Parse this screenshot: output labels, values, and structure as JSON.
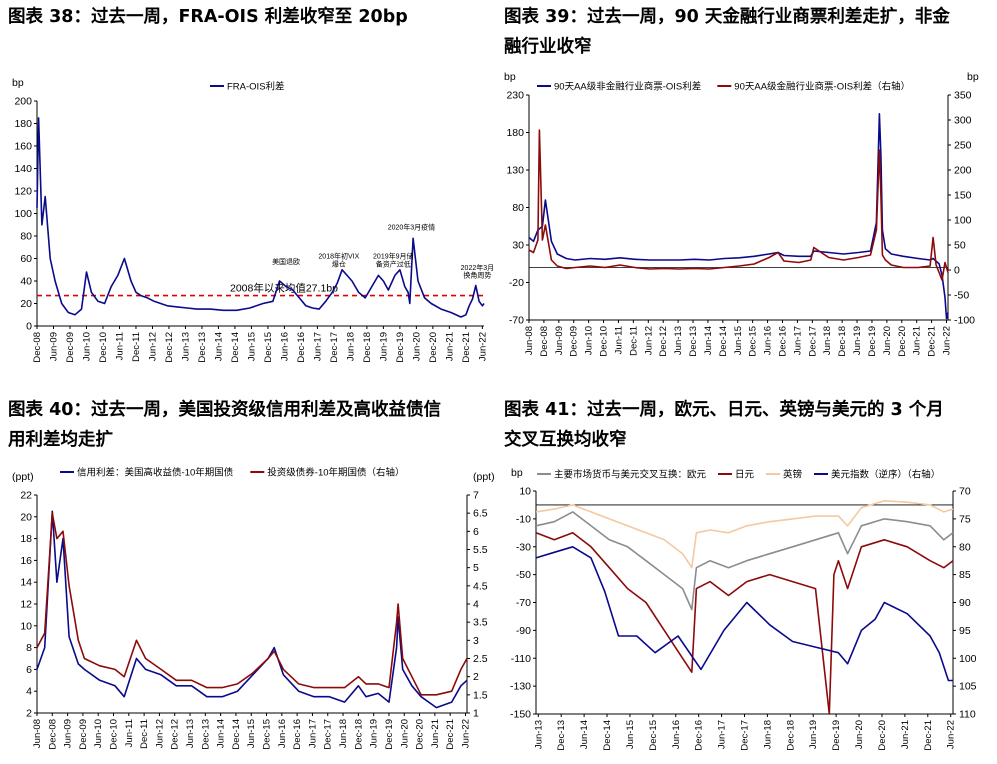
{
  "titles": {
    "c38": "图表 38：过去一周，FRA-OIS 利差收窄至 20bp",
    "c39_line1": "图表 39：过去一周，90 天金融行业商票利差走扩，非金",
    "c39_line2": "融行业收窄",
    "c40_line1": "图表 40：过去一周，美国投资级信用利差及高收益债信",
    "c40_line2": "用利差均走扩",
    "c41_line1": "图表 41：过去一周，欧元、日元、英镑与美元的 3 个月",
    "c41_line2": "交叉互换均收窄"
  },
  "chart_data": [
    {
      "id": "c38",
      "type": "line",
      "title": "图表 38：过去一周，FRA-OIS 利差收窄至 20bp",
      "ylabel": "bp",
      "ylim": [
        0,
        200
      ],
      "yticks": [
        "0",
        "20",
        "40",
        "60",
        "80",
        "100",
        "120",
        "140",
        "160",
        "180",
        "200"
      ],
      "xticks": [
        "Dec-08",
        "Jun-09",
        "Dec-09",
        "Jun-10",
        "Dec-10",
        "Jun-11",
        "Dec-11",
        "Jun-12",
        "Dec-12",
        "Jun-13",
        "Dec-13",
        "Jun-14",
        "Dec-14",
        "Jun-15",
        "Dec-15",
        "Jun-16",
        "Dec-16",
        "Jun-17",
        "Dec-17",
        "Jun-18",
        "Dec-18",
        "Jun-19",
        "Dec-19",
        "Jun-20",
        "Dec-20",
        "Jun-21",
        "Dec-21",
        "Jun-22"
      ],
      "series": [
        {
          "name": "FRA-OIS利差",
          "color": "#0a0a8c",
          "x": [
            2008.95,
            2009.0,
            2009.1,
            2009.2,
            2009.35,
            2009.5,
            2009.7,
            2009.9,
            2010.1,
            2010.3,
            2010.45,
            2010.6,
            2010.8,
            2011.0,
            2011.2,
            2011.4,
            2011.6,
            2011.8,
            2011.95,
            2012.1,
            2012.3,
            2012.5,
            2012.7,
            2012.9,
            2013.2,
            2013.5,
            2013.8,
            2014.2,
            2014.6,
            2015.0,
            2015.4,
            2015.8,
            2016.1,
            2016.3,
            2016.5,
            2016.7,
            2016.9,
            2017.1,
            2017.3,
            2017.5,
            2017.7,
            2017.9,
            2018.05,
            2018.2,
            2018.35,
            2018.5,
            2018.7,
            2018.9,
            2019.1,
            2019.3,
            2019.45,
            2019.6,
            2019.8,
            2019.95,
            2020.1,
            2020.2,
            2020.25,
            2020.35,
            2020.5,
            2020.7,
            2020.9,
            2021.2,
            2021.5,
            2021.8,
            2021.95,
            2022.05,
            2022.15,
            2022.25,
            2022.35,
            2022.45,
            2022.5
          ],
          "y": [
            105,
            185,
            90,
            115,
            60,
            40,
            20,
            12,
            10,
            15,
            48,
            30,
            22,
            20,
            35,
            45,
            60,
            40,
            30,
            27,
            25,
            22,
            20,
            18,
            17,
            16,
            15,
            15,
            14,
            14,
            16,
            20,
            22,
            40,
            35,
            32,
            25,
            18,
            16,
            15,
            22,
            30,
            38,
            50,
            45,
            40,
            30,
            25,
            35,
            45,
            40,
            32,
            45,
            50,
            35,
            30,
            20,
            78,
            40,
            25,
            20,
            15,
            12,
            8,
            10,
            18,
            24,
            36,
            22,
            18,
            20
          ]
        }
      ],
      "reference_line": {
        "label": "2008年以来均值27.1bp",
        "value": 27.1,
        "color": "#e00000"
      },
      "annotations": [
        {
          "text": "美国退欧",
          "x": 2016.5,
          "y": 55
        },
        {
          "text": "2018年初VIX",
          "x": 2018.1,
          "y": 60
        },
        {
          "text": "爆仓",
          "x": 2018.1,
          "y": 53
        },
        {
          "text": "2019年9月储",
          "x": 2019.75,
          "y": 60
        },
        {
          "text": "备资产过低",
          "x": 2019.75,
          "y": 53
        },
        {
          "text": "2020年3月疫情",
          "x": 2020.3,
          "y": 86
        },
        {
          "text": "2022年3月",
          "x": 2022.3,
          "y": 50
        },
        {
          "text": "换角周势",
          "x": 2022.3,
          "y": 43
        }
      ]
    },
    {
      "id": "c39",
      "type": "line",
      "title": "图表 39：过去一周，90 天金融行业商票利差走扩，非金融行业收窄",
      "ylabel": "bp",
      "ylabel_right": "bp",
      "ylim": [
        -70,
        230
      ],
      "ylim_right": [
        -100,
        350
      ],
      "yticks": [
        "-70",
        "-20",
        "30",
        "80",
        "130",
        "180",
        "230"
      ],
      "yticks_right": [
        "-100",
        "-50",
        "0",
        "50",
        "100",
        "150",
        "200",
        "250",
        "300",
        "350"
      ],
      "xticks": [
        "Jun-08",
        "Dec-08",
        "Jun-09",
        "Dec-09",
        "Jun-10",
        "Dec-10",
        "Jun-11",
        "Dec-11",
        "Jun-12",
        "Dec-12",
        "Jun-13",
        "Dec-13",
        "Jun-14",
        "Dec-14",
        "Jun-15",
        "Dec-15",
        "Jun-16",
        "Dec-16",
        "Jun-17",
        "Dec-17",
        "Jun-18",
        "Dec-18",
        "Jun-19",
        "Dec-19",
        "Jun-20",
        "Dec-20",
        "Jun-21",
        "Dec-21",
        "Jun-22"
      ],
      "series": [
        {
          "name": "90天AA级非金融行业商票-OIS利差",
          "color": "#0a0a8c",
          "axis": "left",
          "x": [
            2008.45,
            2008.6,
            2008.75,
            2008.9,
            2009.0,
            2009.2,
            2009.4,
            2009.7,
            2010.0,
            2010.5,
            2011.0,
            2011.5,
            2012.0,
            2012.5,
            2013.0,
            2013.5,
            2014.0,
            2014.5,
            2015.0,
            2015.5,
            2016.0,
            2016.5,
            2016.8,
            2017.0,
            2017.5,
            2017.9,
            2018.0,
            2018.5,
            2019.0,
            2019.5,
            2019.9,
            2020.1,
            2020.2,
            2020.25,
            2020.3,
            2020.4,
            2020.6,
            2021.0,
            2021.5,
            2021.9,
            2022.0,
            2022.2,
            2022.3,
            2022.4,
            2022.45,
            2022.5
          ],
          "y": [
            40,
            35,
            50,
            55,
            90,
            35,
            18,
            12,
            10,
            12,
            11,
            13,
            11,
            10,
            10,
            10,
            11,
            10,
            12,
            13,
            15,
            18,
            20,
            16,
            15,
            15,
            22,
            20,
            18,
            20,
            22,
            60,
            205,
            150,
            50,
            25,
            18,
            15,
            12,
            10,
            12,
            5,
            -10,
            -40,
            -68,
            -60
          ]
        },
        {
          "name": "90天AA级金融行业商票-OIS利差（右轴）",
          "color": "#8c0a0a",
          "axis": "right",
          "x": [
            2008.45,
            2008.6,
            2008.75,
            2008.8,
            2008.9,
            2009.0,
            2009.2,
            2009.4,
            2009.7,
            2010.0,
            2010.5,
            2011.0,
            2011.5,
            2012.0,
            2012.5,
            2013.0,
            2013.5,
            2014.0,
            2014.5,
            2015.0,
            2015.5,
            2016.0,
            2016.5,
            2016.8,
            2017.0,
            2017.5,
            2017.9,
            2018.0,
            2018.5,
            2019.0,
            2019.5,
            2019.9,
            2020.1,
            2020.2,
            2020.25,
            2020.3,
            2020.4,
            2020.6,
            2021.0,
            2021.5,
            2021.9,
            2022.0,
            2022.1,
            2022.2,
            2022.3,
            2022.4,
            2022.5
          ],
          "y": [
            40,
            35,
            60,
            280,
            60,
            90,
            20,
            8,
            3,
            5,
            8,
            5,
            10,
            5,
            2,
            3,
            2,
            3,
            2,
            5,
            8,
            12,
            25,
            35,
            18,
            15,
            20,
            45,
            25,
            20,
            25,
            30,
            80,
            240,
            150,
            30,
            20,
            10,
            5,
            5,
            8,
            65,
            10,
            -5,
            -20,
            15,
            -5
          ]
        }
      ]
    },
    {
      "id": "c40",
      "type": "line",
      "title": "图表 40：过去一周，美国投资级信用利差及高收益债信用利差均走扩",
      "ylabel": "(ppt)",
      "ylabel_right": "(ppt)",
      "ylim": [
        2,
        22
      ],
      "ylim_right": [
        1,
        7
      ],
      "yticks": [
        "2",
        "4",
        "6",
        "8",
        "10",
        "12",
        "14",
        "16",
        "18",
        "20",
        "22"
      ],
      "yticks_right": [
        "1",
        "1.5",
        "2",
        "2.5",
        "3",
        "3.5",
        "4",
        "4.5",
        "5",
        "5.5",
        "6",
        "6.5",
        "7"
      ],
      "xticks": [
        "Jun-08",
        "Dec-08",
        "Jun-09",
        "Dec-09",
        "Jun-10",
        "Dec-10",
        "Jun-11",
        "Dec-11",
        "Jun-12",
        "Dec-12",
        "Jun-13",
        "Dec-13",
        "Jun-14",
        "Dec-14",
        "Jun-15",
        "Dec-15",
        "Jun-16",
        "Dec-16",
        "Jun-17",
        "Dec-17",
        "Jun-18",
        "Dec-18",
        "Jun-19",
        "Dec-19",
        "Jun-20",
        "Dec-20",
        "Jun-21",
        "Dec-21",
        "Jun-22"
      ],
      "series": [
        {
          "name": "信用利差：美国高收益债-10年期国债",
          "color": "#0a0a8c",
          "axis": "left",
          "x": [
            2008.45,
            2008.7,
            2008.95,
            2009.1,
            2009.3,
            2009.5,
            2009.8,
            2010.0,
            2010.5,
            2011.0,
            2011.3,
            2011.7,
            2012.0,
            2012.5,
            2013.0,
            2013.5,
            2014.0,
            2014.5,
            2015.0,
            2015.5,
            2016.0,
            2016.2,
            2016.5,
            2017.0,
            2017.5,
            2018.0,
            2018.5,
            2018.95,
            2019.2,
            2019.6,
            2019.95,
            2020.2,
            2020.25,
            2020.4,
            2020.7,
            2021.0,
            2021.5,
            2022.0,
            2022.3,
            2022.5
          ],
          "y": [
            6,
            8,
            20.5,
            14,
            18,
            9,
            6.5,
            6,
            5,
            4.5,
            3.5,
            7,
            6,
            5.5,
            4.5,
            4.5,
            3.5,
            3.5,
            4,
            5.5,
            7,
            8,
            5.5,
            4,
            3.5,
            3.5,
            3,
            4.5,
            3.5,
            3.8,
            3,
            8,
            10.8,
            6,
            4.5,
            3.5,
            2.5,
            3,
            4.5,
            5
          ]
        },
        {
          "name": "投资级债券-10年期国债（右轴）",
          "color": "#8c0a0a",
          "axis": "right",
          "x": [
            2008.45,
            2008.7,
            2008.95,
            2009.1,
            2009.3,
            2009.5,
            2009.8,
            2010.0,
            2010.5,
            2011.0,
            2011.3,
            2011.7,
            2012.0,
            2012.5,
            2013.0,
            2013.5,
            2014.0,
            2014.5,
            2015.0,
            2015.5,
            2016.0,
            2016.2,
            2016.5,
            2017.0,
            2017.5,
            2018.0,
            2018.5,
            2018.95,
            2019.2,
            2019.6,
            2019.95,
            2020.2,
            2020.25,
            2020.4,
            2020.7,
            2021.0,
            2021.5,
            2022.0,
            2022.3,
            2022.5
          ],
          "y": [
            2.8,
            3.2,
            6.5,
            5.8,
            6,
            4.5,
            3,
            2.5,
            2.3,
            2.2,
            2,
            3,
            2.5,
            2.2,
            1.9,
            1.9,
            1.7,
            1.7,
            1.8,
            2.1,
            2.5,
            2.7,
            2.2,
            1.8,
            1.7,
            1.7,
            1.7,
            2,
            1.8,
            1.8,
            1.7,
            3.5,
            4,
            2.5,
            2,
            1.5,
            1.5,
            1.6,
            2.2,
            2.5
          ]
        }
      ]
    },
    {
      "id": "c41",
      "type": "line",
      "title": "图表 41：过去一周，欧元、日元、英镑与美元的 3 个月交叉互换均收窄",
      "ylabel": "bp",
      "ylim": [
        -150,
        10
      ],
      "ylim_right": [
        70,
        110
      ],
      "right_axis_inverted": true,
      "yticks": [
        "-150",
        "-130",
        "-110",
        "-90",
        "-70",
        "-50",
        "-30",
        "-10",
        "10"
      ],
      "yticks_right": [
        "70",
        "75",
        "80",
        "85",
        "90",
        "95",
        "100",
        "105",
        "110"
      ],
      "xticks": [
        "Jun-13",
        "Dec-13",
        "Jun-14",
        "Dec-14",
        "Jun-15",
        "Dec-15",
        "Jun-16",
        "Dec-16",
        "Jun-17",
        "Dec-17",
        "Jun-18",
        "Dec-18",
        "Jun-19",
        "Dec-19",
        "Jun-20",
        "Dec-20",
        "Jun-21",
        "Dec-21",
        "Jun-22"
      ],
      "legend_prefix": "主要市场货币与美元交叉互换：",
      "series": [
        {
          "name": "欧元",
          "color": "#8c8c8c",
          "axis": "left",
          "x": [
            2013.4,
            2013.8,
            2014.2,
            2014.6,
            2015.0,
            2015.4,
            2015.8,
            2016.2,
            2016.6,
            2016.8,
            2016.9,
            2017.2,
            2017.6,
            2018.0,
            2018.5,
            2019.0,
            2019.5,
            2020.0,
            2020.2,
            2020.5,
            2021.0,
            2021.5,
            2022.0,
            2022.3,
            2022.5
          ],
          "y": [
            -15,
            -12,
            -5,
            -15,
            -25,
            -30,
            -40,
            -50,
            -60,
            -75,
            -45,
            -40,
            -45,
            -40,
            -35,
            -30,
            -25,
            -20,
            -35,
            -15,
            -10,
            -12,
            -15,
            -25,
            -20
          ]
        },
        {
          "name": "日元",
          "color": "#8c0a0a",
          "axis": "left",
          "x": [
            2013.4,
            2013.8,
            2014.2,
            2014.6,
            2015.0,
            2015.4,
            2015.8,
            2016.2,
            2016.6,
            2016.8,
            2016.9,
            2017.2,
            2017.6,
            2018.0,
            2018.5,
            2019.0,
            2019.5,
            2019.8,
            2019.9,
            2020.0,
            2020.2,
            2020.5,
            2021.0,
            2021.5,
            2022.0,
            2022.3,
            2022.5
          ],
          "y": [
            -20,
            -25,
            -20,
            -30,
            -45,
            -60,
            -70,
            -90,
            -110,
            -120,
            -60,
            -55,
            -65,
            -55,
            -50,
            -55,
            -60,
            -150,
            -50,
            -40,
            -60,
            -30,
            -25,
            -30,
            -40,
            -45,
            -40
          ]
        },
        {
          "name": "英镑",
          "color": "#f5c8a0",
          "axis": "left",
          "x": [
            2013.4,
            2013.8,
            2014.2,
            2014.6,
            2015.0,
            2015.4,
            2015.8,
            2016.2,
            2016.6,
            2016.8,
            2016.9,
            2017.2,
            2017.6,
            2018.0,
            2018.5,
            2019.0,
            2019.5,
            2020.0,
            2020.2,
            2020.5,
            2021.0,
            2021.5,
            2022.0,
            2022.3,
            2022.5
          ],
          "y": [
            -5,
            -3,
            0,
            -5,
            -10,
            -15,
            -20,
            -25,
            -35,
            -45,
            -20,
            -18,
            -20,
            -15,
            -12,
            -10,
            -8,
            -8,
            -15,
            -2,
            3,
            2,
            0,
            -5,
            -3
          ]
        },
        {
          "name": "美元指数（逆序）（右轴）",
          "color": "#0a0a8c",
          "axis": "right",
          "x": [
            2013.4,
            2013.8,
            2014.2,
            2014.6,
            2014.9,
            2015.2,
            2015.6,
            2016.0,
            2016.5,
            2017.0,
            2017.5,
            2018.0,
            2018.5,
            2019.0,
            2019.5,
            2020.0,
            2020.2,
            2020.5,
            2020.8,
            2021.0,
            2021.5,
            2022.0,
            2022.2,
            2022.4,
            2022.5
          ],
          "y": [
            82,
            81,
            80,
            82,
            88,
            96,
            96,
            99,
            96,
            102,
            95,
            90,
            94,
            97,
            98,
            99,
            101,
            95,
            93,
            90,
            92,
            96,
            99,
            104,
            104
          ]
        }
      ]
    }
  ]
}
